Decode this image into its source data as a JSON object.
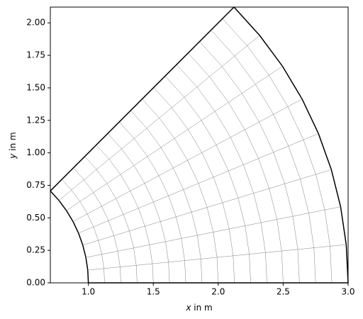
{
  "chart_data": {
    "type": "polar-mesh",
    "x_label": "x in m",
    "y_label": "y in m",
    "radii": [
      1.0,
      1.125,
      1.25,
      1.375,
      1.5,
      1.625,
      1.75,
      1.875,
      2.0,
      2.125,
      2.25,
      2.375,
      2.5,
      2.625,
      2.75,
      2.875,
      3.0
    ],
    "angles_deg": [
      0,
      5.625,
      11.25,
      16.875,
      22.5,
      28.125,
      33.75,
      39.375,
      45
    ],
    "boundary_color": "#000000",
    "mesh_color": "#808080",
    "xlim": [
      0.7071,
      3.0
    ],
    "ylim": [
      0,
      2.1213
    ],
    "xticks": [
      {
        "value": 1.0,
        "label": "1.0"
      },
      {
        "value": 1.5,
        "label": "1.5"
      },
      {
        "value": 2.0,
        "label": "2.0"
      },
      {
        "value": 2.5,
        "label": "2.5"
      },
      {
        "value": 3.0,
        "label": "3.0"
      }
    ],
    "yticks": [
      {
        "value": 0,
        "label": "0.00"
      },
      {
        "value": 0.25,
        "label": "0.25"
      },
      {
        "value": 0.5,
        "label": "0.50"
      },
      {
        "value": 0.75,
        "label": "0.75"
      },
      {
        "value": 1.0,
        "label": "1.00"
      },
      {
        "value": 1.25,
        "label": "1.25"
      },
      {
        "value": 1.5,
        "label": "1.50"
      },
      {
        "value": 1.75,
        "label": "1.75"
      },
      {
        "value": 2.0,
        "label": "2.00"
      }
    ]
  }
}
